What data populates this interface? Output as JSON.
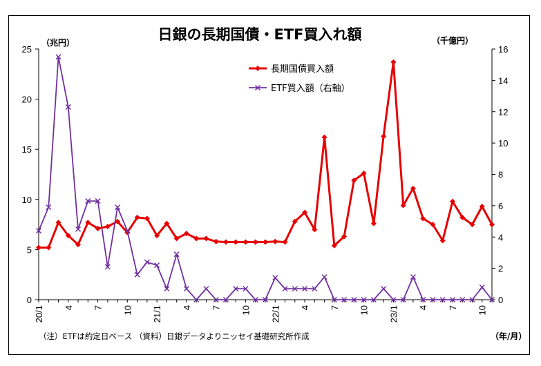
{
  "chart_data": {
    "type": "line",
    "title": "日銀の長期国債・ETF買入れ額",
    "ylabel_left": "（兆円）",
    "ylabel_right": "（千億円）",
    "xlabel": "（年/月）",
    "note": "（注）ETFは約定日ベース （資料）日銀データよりニッセイ基礎研究所作成",
    "ylim_left": [
      0,
      25
    ],
    "ylim_right": [
      0,
      16
    ],
    "yticks_left": [
      "0",
      "5",
      "10",
      "15",
      "20",
      "25"
    ],
    "yticks_right": [
      "0",
      "2",
      "4",
      "6",
      "8",
      "10",
      "12",
      "14",
      "16"
    ],
    "x_tick_labels": [
      {
        "index": 0,
        "label": "20/1"
      },
      {
        "index": 3,
        "label": "4"
      },
      {
        "index": 6,
        "label": "7"
      },
      {
        "index": 9,
        "label": "10"
      },
      {
        "index": 12,
        "label": "21/1"
      },
      {
        "index": 15,
        "label": "4"
      },
      {
        "index": 18,
        "label": "7"
      },
      {
        "index": 21,
        "label": "10"
      },
      {
        "index": 24,
        "label": "22/1"
      },
      {
        "index": 27,
        "label": "4"
      },
      {
        "index": 30,
        "label": "7"
      },
      {
        "index": 33,
        "label": "10"
      },
      {
        "index": 36,
        "label": "23/1"
      },
      {
        "index": 39,
        "label": "4"
      },
      {
        "index": 42,
        "label": "7"
      },
      {
        "index": 45,
        "label": "10"
      }
    ],
    "months": [
      "2020-01",
      "2020-02",
      "2020-03",
      "2020-04",
      "2020-05",
      "2020-06",
      "2020-07",
      "2020-08",
      "2020-09",
      "2020-10",
      "2020-11",
      "2020-12",
      "2021-01",
      "2021-02",
      "2021-03",
      "2021-04",
      "2021-05",
      "2021-06",
      "2021-07",
      "2021-08",
      "2021-09",
      "2021-10",
      "2021-11",
      "2021-12",
      "2022-01",
      "2022-02",
      "2022-03",
      "2022-04",
      "2022-05",
      "2022-06",
      "2022-07",
      "2022-08",
      "2022-09",
      "2022-10",
      "2022-11",
      "2022-12",
      "2023-01",
      "2023-02",
      "2023-03",
      "2023-04",
      "2023-05",
      "2023-06",
      "2023-07",
      "2023-08",
      "2023-09",
      "2023-10",
      "2023-11"
    ],
    "series": [
      {
        "name": "長期国債買入額",
        "axis": "left",
        "color": "#e60000",
        "marker": "diamond",
        "values": [
          5.2,
          5.2,
          7.7,
          6.4,
          5.5,
          7.7,
          7.1,
          7.3,
          7.8,
          6.7,
          8.2,
          8.1,
          6.4,
          7.6,
          6.1,
          6.6,
          6.1,
          6.1,
          5.8,
          5.75,
          5.75,
          5.75,
          5.75,
          5.75,
          5.8,
          5.75,
          7.8,
          8.7,
          7.0,
          16.2,
          5.4,
          6.3,
          11.9,
          12.6,
          7.6,
          16.3,
          23.7,
          9.4,
          11.1,
          8.1,
          7.5,
          5.9,
          9.8,
          8.2,
          7.5,
          9.3,
          7.5
        ]
      },
      {
        "name": "ETF買入額（右軸）",
        "axis": "right",
        "color": "#7030a0",
        "marker": "x",
        "values": [
          4.4,
          5.9,
          15.5,
          12.3,
          4.5,
          6.3,
          6.3,
          2.1,
          5.9,
          4.4,
          1.6,
          2.4,
          2.2,
          0.7,
          2.9,
          0.7,
          0.0,
          0.7,
          0.0,
          0.0,
          0.7,
          0.7,
          0.0,
          0.0,
          1.4,
          0.7,
          0.7,
          0.7,
          0.7,
          1.45,
          0.0,
          0.0,
          0.0,
          0.0,
          0.0,
          0.7,
          0.0,
          0.0,
          1.45,
          0.0,
          0.0,
          0.0,
          0.0,
          0.0,
          0.0,
          0.8,
          0.0
        ]
      }
    ],
    "legend_position": "top-center",
    "grid": false
  }
}
